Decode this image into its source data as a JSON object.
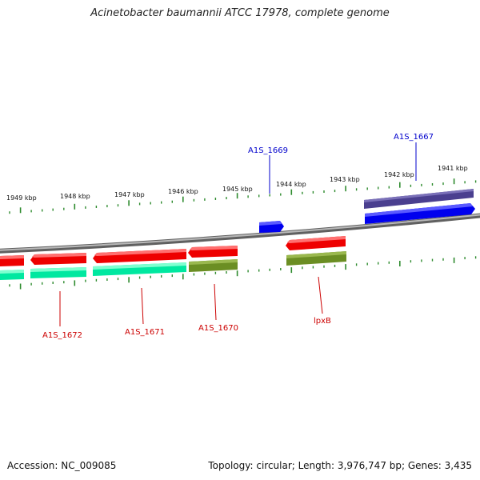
{
  "title": "Acinetobacter baumannii ATCC 17978, complete genome",
  "footer": {
    "accession": "Accession: NC_009085",
    "summary": "Topology: circular; Length: 3,976,747 bp; Genes: 3,435"
  },
  "colors": {
    "backbone": "#808080",
    "tick": "#2e8b2e",
    "forward_gene": "#0000ee",
    "forward_gene_dark": "#4a3f8f",
    "reverse_gene": "#ee0000",
    "spring_green": "#00e8a0",
    "olive": "#6b8e23",
    "forward_label": "#0000cc",
    "reverse_label": "#cc0000"
  },
  "scale": {
    "unit": "kbp",
    "labels": [
      "1949 kbp",
      "1948 kbp",
      "1947 kbp",
      "1946 kbp",
      "1945 kbp",
      "1944 kbp",
      "1943 kbp",
      "1942 kbp",
      "1941 kbp"
    ]
  },
  "genes": [
    {
      "name": "A1S_1667",
      "strand": "forward"
    },
    {
      "name": "A1S_1669",
      "strand": "forward"
    },
    {
      "name": "A1S_1670",
      "strand": "reverse"
    },
    {
      "name": "A1S_1671",
      "strand": "reverse"
    },
    {
      "name": "A1S_1672",
      "strand": "reverse"
    },
    {
      "name": "lpxB",
      "strand": "reverse"
    }
  ]
}
